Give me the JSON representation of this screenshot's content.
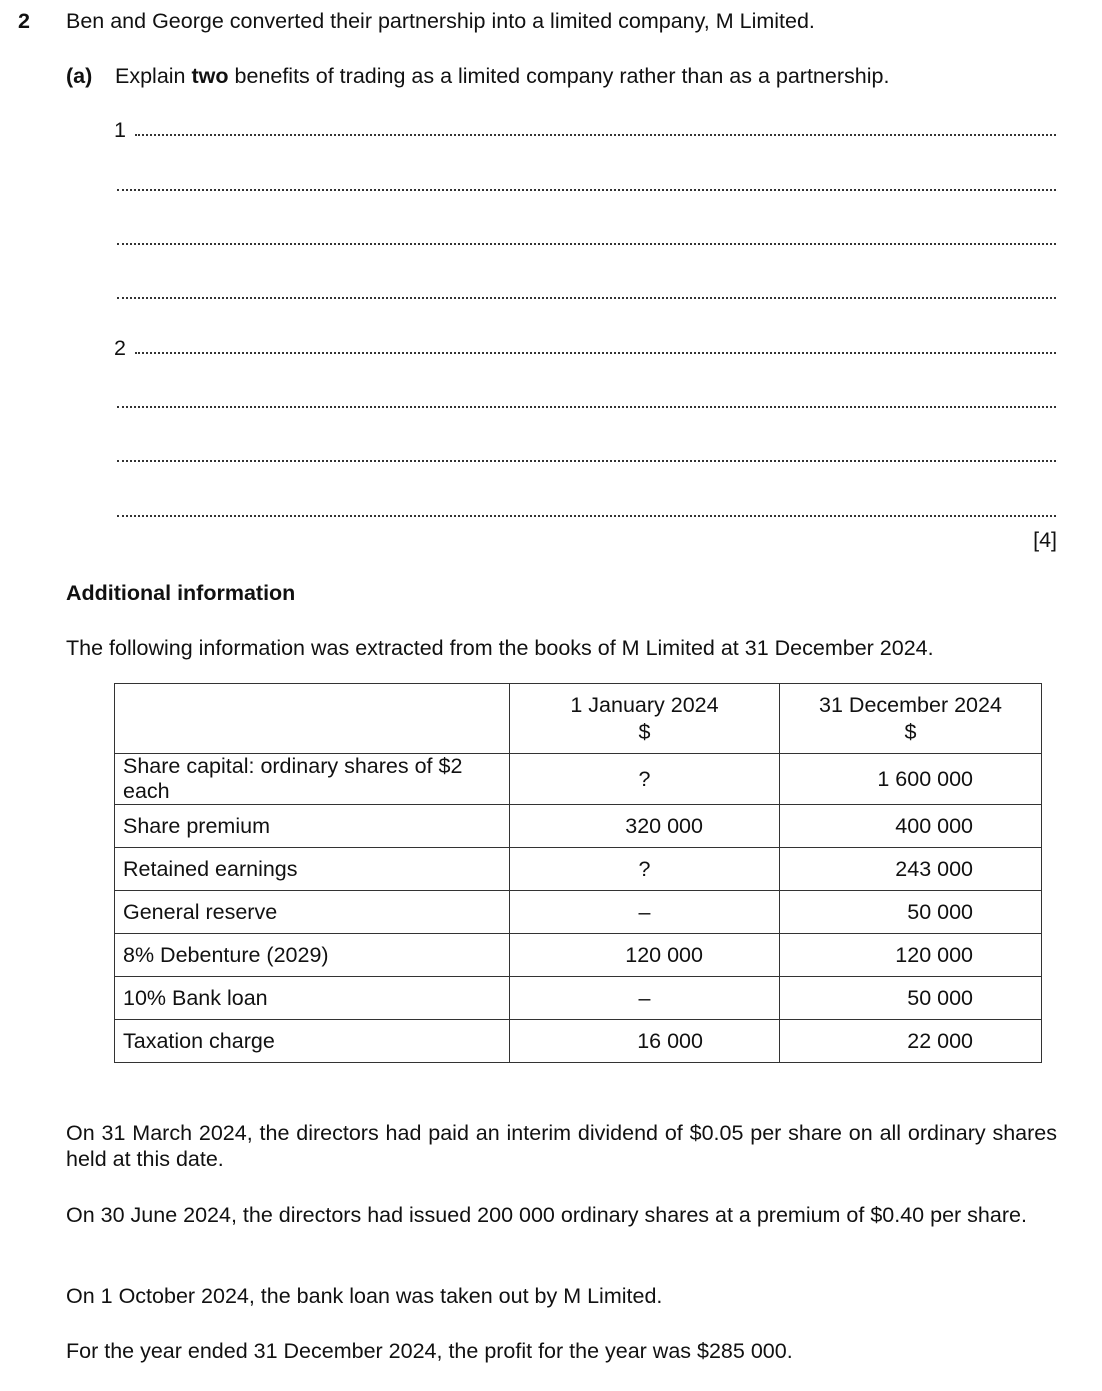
{
  "question": {
    "number": "2",
    "intro": "Ben and George converted their partnership into a limited company, M Limited.",
    "part_a": {
      "label": "(a)",
      "text_before": "Explain ",
      "text_bold": "two",
      "text_after": " benefits of trading as a limited company rather than as a partnership.",
      "answer_numbers": [
        "1",
        "2"
      ],
      "marks": "[4]"
    }
  },
  "additional": {
    "heading": "Additional information",
    "intro": "The following information was extracted from the books of M Limited at 31 December 2024.",
    "table": {
      "headers": [
        {
          "date": "1 January 2024",
          "unit": "$"
        },
        {
          "date": "31 December 2024",
          "unit": "$"
        }
      ],
      "rows": [
        {
          "label": "Share capital: ordinary shares of $2 each",
          "jan": "?",
          "dec": "1 600 000"
        },
        {
          "label": "Share premium",
          "jan": "320 000",
          "dec": "400 000"
        },
        {
          "label": "Retained earnings",
          "jan": "?",
          "dec": "243 000"
        },
        {
          "label": "General reserve",
          "jan": "–",
          "dec": "50 000"
        },
        {
          "label": "8% Debenture (2029)",
          "jan": "120 000",
          "dec": "120 000"
        },
        {
          "label": "10% Bank loan",
          "jan": "–",
          "dec": "50 000"
        },
        {
          "label": "Taxation charge",
          "jan": "16 000",
          "dec": "22 000"
        }
      ]
    },
    "paragraphs": [
      "On 31 March 2024, the directors had paid an interim dividend of $0.05 per share on all ordinary shares held at this date.",
      "On 30 June 2024, the directors had issued 200 000 ordinary shares at a premium of $0.40 per share.",
      "On 1 October 2024, the bank loan was taken out by M Limited.",
      "For the year ended 31 December 2024, the profit for the year was $285 000."
    ]
  }
}
